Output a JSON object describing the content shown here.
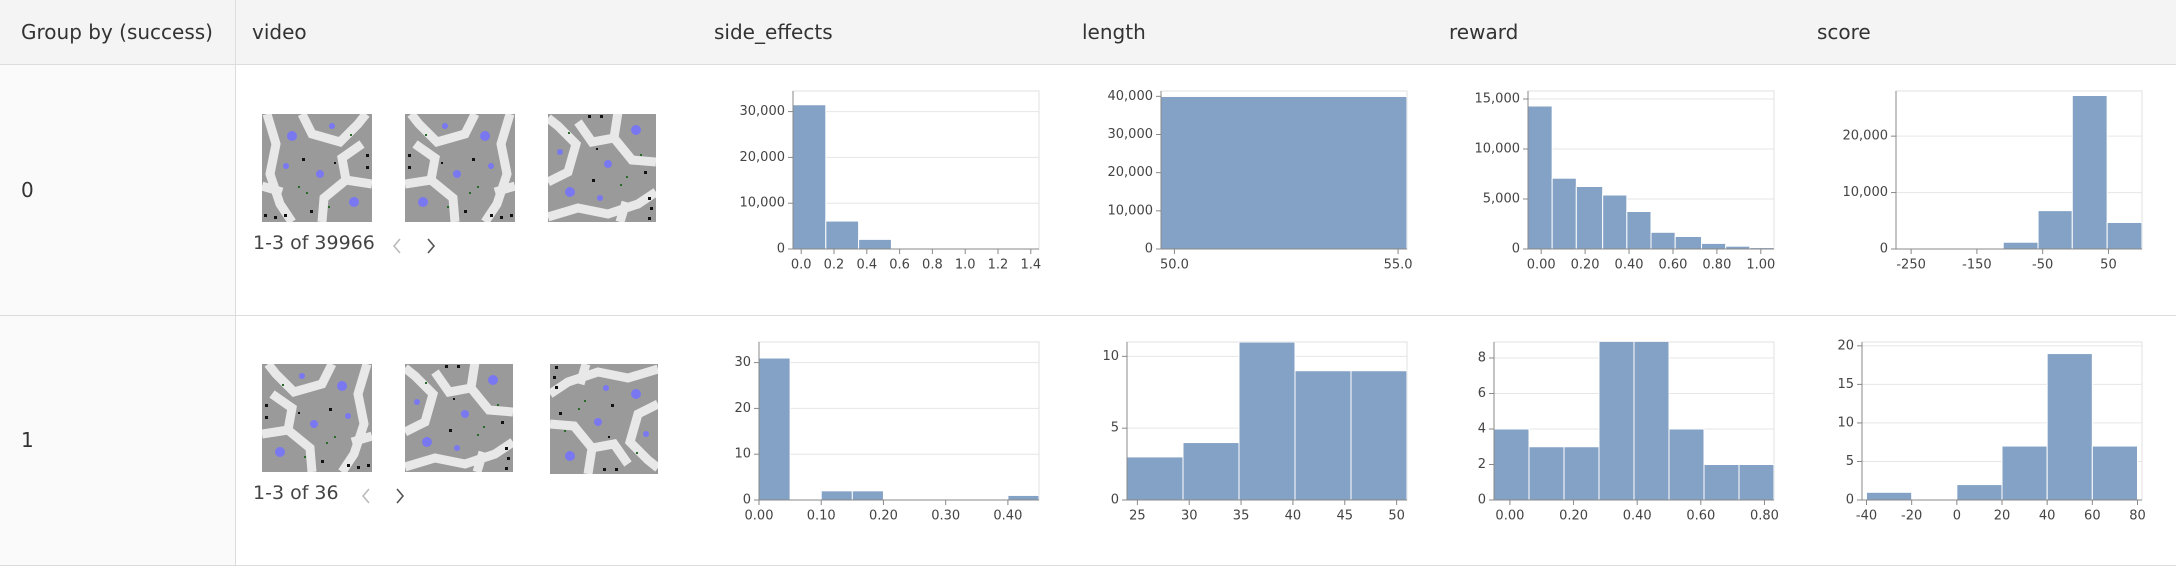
{
  "table": {
    "columns": [
      "Group by (success)",
      "video",
      "side_effects",
      "length",
      "reward",
      "score"
    ],
    "rows": [
      {
        "group": "0",
        "video": {
          "caption": "1-3 of 39966"
        },
        "chart_data": [
          {
            "type": "histogram",
            "color": "#84a2c6",
            "grid": true,
            "bins": [
              -0.05,
              0.15,
              0.35,
              0.55,
              0.75,
              0.95,
              1.15,
              1.35
            ],
            "values": [
              31500,
              6100,
              2100,
              200,
              40,
              15,
              10
            ],
            "xlim": [
              -0.05,
              1.45
            ],
            "ylim": [
              0,
              34500
            ],
            "xticks": [
              {
                "value": 0,
                "label": "0.0"
              },
              0.2,
              0.4,
              0.6,
              0.8,
              {
                "value": 1,
                "label": "1.0"
              },
              1.2,
              1.4
            ],
            "yticks": [
              0,
              {
                "value": 10000,
                "label": "10,000"
              },
              {
                "value": 20000,
                "label": "20,000"
              },
              {
                "value": 30000,
                "label": "30,000"
              }
            ]
          },
          {
            "type": "histogram",
            "color": "#84a2c6",
            "grid": true,
            "bins": [
              49.7,
              55.2
            ],
            "values": [
              39966
            ],
            "xlim": [
              49.7,
              55.2
            ],
            "ylim": [
              0,
              41400
            ],
            "xticks": [
              {
                "value": 50,
                "label": "50.0"
              },
              {
                "value": 55,
                "label": "55.0"
              }
            ],
            "yticks": [
              0,
              {
                "value": 10000,
                "label": "10,000"
              },
              {
                "value": 20000,
                "label": "20,000"
              },
              {
                "value": 30000,
                "label": "30,000"
              },
              {
                "value": 40000,
                "label": "40,000"
              }
            ]
          },
          {
            "type": "histogram",
            "color": "#84a2c6",
            "grid": true,
            "bins": [
              -0.06,
              0.05,
              0.16,
              0.28,
              0.39,
              0.5,
              0.61,
              0.73,
              0.84,
              0.95,
              1.06
            ],
            "values": [
              14300,
              7080,
              6250,
              5400,
              3750,
              1670,
              1250,
              560,
              280,
              140
            ],
            "xlim": [
              -0.06,
              1.06
            ],
            "ylim": [
              0,
              15800
            ],
            "xticks": [
              {
                "value": 0,
                "label": "0.00"
              },
              {
                "value": 0.2,
                "label": "0.20"
              },
              {
                "value": 0.4,
                "label": "0.40"
              },
              {
                "value": 0.6,
                "label": "0.60"
              },
              {
                "value": 0.8,
                "label": "0.80"
              },
              {
                "value": 1,
                "label": "1.00"
              }
            ],
            "yticks": [
              0,
              {
                "value": 5000,
                "label": "5,000"
              },
              {
                "value": 10000,
                "label": "10,000"
              },
              {
                "value": 15000,
                "label": "15,000"
              }
            ]
          },
          {
            "type": "histogram",
            "color": "#84a2c6",
            "grid": true,
            "bins": [
              -110,
              -57,
              -5,
              48,
              101
            ],
            "values": [
              1200,
              6800,
              27200,
              4700
            ],
            "xlim": [
              -273,
              101
            ],
            "ylim": [
              0,
              28000
            ],
            "xticks": [
              -250,
              -150,
              -50,
              50
            ],
            "yticks": [
              0,
              {
                "value": 10000,
                "label": "10,000"
              },
              {
                "value": 20000,
                "label": "20,000"
              }
            ]
          }
        ]
      },
      {
        "group": "1",
        "video": {
          "caption": "1-3 of 36"
        },
        "chart_data": [
          {
            "type": "histogram",
            "color": "#84a2c6",
            "grid": true,
            "bins": [
              0,
              0.05,
              0.1,
              0.15,
              0.2,
              0.25,
              0.3,
              0.35,
              0.4,
              0.45
            ],
            "values": [
              31,
              0,
              2,
              2,
              0,
              0,
              0,
              0,
              1
            ],
            "xlim": [
              0,
              0.45
            ],
            "ylim": [
              0,
              34.5
            ],
            "xticks": [
              {
                "value": 0,
                "label": "0.00"
              },
              {
                "value": 0.1,
                "label": "0.10"
              },
              {
                "value": 0.2,
                "label": "0.20"
              },
              {
                "value": 0.3,
                "label": "0.30"
              },
              {
                "value": 0.4,
                "label": "0.40"
              }
            ],
            "yticks": [
              0,
              10,
              20,
              30
            ]
          },
          {
            "type": "histogram",
            "color": "#84a2c6",
            "grid": true,
            "bins": [
              24,
              29.4,
              34.8,
              40.2,
              45.6,
              51
            ],
            "values": [
              3,
              4,
              11,
              9,
              9
            ],
            "xlim": [
              24,
              51
            ],
            "ylim": [
              0,
              11
            ],
            "xticks": [
              25,
              30,
              35,
              40,
              45,
              50
            ],
            "yticks": [
              0,
              5,
              10
            ]
          },
          {
            "type": "histogram",
            "color": "#84a2c6",
            "grid": true,
            "bins": [
              -0.05,
              0.06,
              0.17,
              0.28,
              0.39,
              0.5,
              0.61,
              0.72,
              0.83
            ],
            "values": [
              4,
              3,
              3,
              9,
              9,
              4,
              2,
              2
            ],
            "xlim": [
              -0.05,
              0.83
            ],
            "ylim": [
              0,
              8.9
            ],
            "xticks": [
              {
                "value": 0,
                "label": "0.00"
              },
              {
                "value": 0.2,
                "label": "0.20"
              },
              {
                "value": 0.4,
                "label": "0.40"
              },
              {
                "value": 0.6,
                "label": "0.60"
              },
              {
                "value": 0.8,
                "label": "0.80"
              }
            ],
            "yticks": [
              0,
              2,
              4,
              6,
              8
            ]
          },
          {
            "type": "histogram",
            "color": "#84a2c6",
            "grid": true,
            "bins": [
              -40,
              -20,
              0,
              20,
              40,
              60,
              80
            ],
            "values": [
              1,
              0,
              2,
              7,
              19,
              7
            ],
            "xlim": [
              -42,
              82
            ],
            "ylim": [
              0,
              20.5
            ],
            "xticks": [
              -40,
              -20,
              0,
              20,
              40,
              60,
              80
            ],
            "yticks": [
              0,
              5,
              10,
              15,
              20
            ]
          }
        ]
      }
    ]
  }
}
